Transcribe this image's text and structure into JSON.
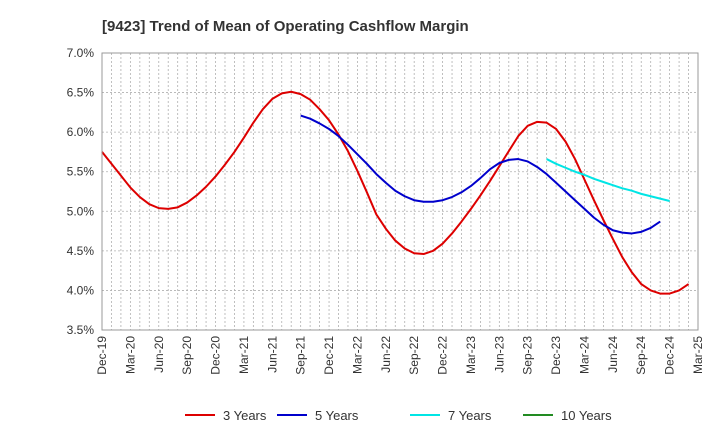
{
  "chart_data": {
    "type": "line",
    "title": "[9423]  Trend of Mean of Operating Cashflow Margin",
    "xlabel": "",
    "ylabel": "",
    "ylim": [
      3.5,
      7.0
    ],
    "y_ticks": [
      "3.5%",
      "4.0%",
      "4.5%",
      "5.0%",
      "5.5%",
      "6.0%",
      "6.5%",
      "7.0%"
    ],
    "y_tick_values": [
      3.5,
      4.0,
      4.5,
      5.0,
      5.5,
      6.0,
      6.5,
      7.0
    ],
    "x_ticks": [
      "Dec-19",
      "Mar-20",
      "Jun-20",
      "Sep-20",
      "Dec-20",
      "Mar-21",
      "Jun-21",
      "Sep-21",
      "Dec-21",
      "Mar-22",
      "Jun-22",
      "Sep-22",
      "Dec-22",
      "Mar-23",
      "Jun-23",
      "Sep-23",
      "Dec-23",
      "Mar-24",
      "Jun-24",
      "Sep-24",
      "Dec-24",
      "Mar-25"
    ],
    "x_months_total": 63,
    "grid": true,
    "legend_position": "bottom",
    "series": [
      {
        "name": "3 Years",
        "color": "#dd0000",
        "start_month": 0,
        "values": [
          5.75,
          5.6,
          5.45,
          5.3,
          5.18,
          5.09,
          5.04,
          5.03,
          5.05,
          5.11,
          5.2,
          5.31,
          5.44,
          5.59,
          5.75,
          5.93,
          6.12,
          6.29,
          6.42,
          6.49,
          6.51,
          6.48,
          6.41,
          6.29,
          6.15,
          5.97,
          5.76,
          5.51,
          5.24,
          4.96,
          4.78,
          4.63,
          4.53,
          4.47,
          4.46,
          4.5,
          4.59,
          4.72,
          4.87,
          5.03,
          5.2,
          5.38,
          5.57,
          5.76,
          5.95,
          6.08,
          6.13,
          6.12,
          6.04,
          5.88,
          5.66,
          5.4,
          5.14,
          4.89,
          4.65,
          4.42,
          4.23,
          4.08,
          4.0,
          3.96,
          3.96,
          4.0,
          4.08
        ]
      },
      {
        "name": "5 Years",
        "color": "#0000cc",
        "start_month": 21,
        "values": [
          6.21,
          6.17,
          6.11,
          6.04,
          5.95,
          5.84,
          5.72,
          5.6,
          5.47,
          5.36,
          5.26,
          5.19,
          5.14,
          5.12,
          5.12,
          5.14,
          5.18,
          5.24,
          5.32,
          5.42,
          5.53,
          5.61,
          5.65,
          5.66,
          5.63,
          5.56,
          5.47,
          5.36,
          5.25,
          5.14,
          5.03,
          4.92,
          4.83,
          4.76,
          4.73,
          4.72,
          4.74,
          4.79,
          4.87
        ]
      },
      {
        "name": "7 Years",
        "color": "#00e5e5",
        "start_month": 47,
        "values": [
          5.66,
          5.6,
          5.55,
          5.5,
          5.46,
          5.41,
          5.37,
          5.33,
          5.29,
          5.26,
          5.22,
          5.19,
          5.16,
          5.13
        ]
      },
      {
        "name": "10 Years",
        "color": "#228B22",
        "start_month": 0,
        "values": []
      }
    ]
  }
}
